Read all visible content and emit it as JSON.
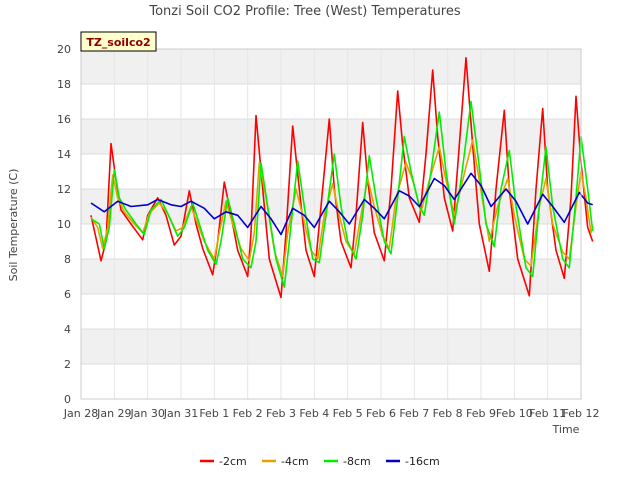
{
  "chart_data": {
    "type": "line",
    "title": "Tonzi Soil CO2 Profile: Tree (West) Temperatures",
    "xlabel": "Time",
    "ylabel": "Soil Temperature (C)",
    "badge": "TZ_soilco2",
    "ylim": [
      0,
      20
    ],
    "yticks": [
      0,
      2,
      4,
      6,
      8,
      10,
      12,
      14,
      16,
      18,
      20
    ],
    "xlim": [
      0,
      15
    ],
    "xticks": [
      {
        "x": 0,
        "label": "Jan 28"
      },
      {
        "x": 1,
        "label": "Jan 29"
      },
      {
        "x": 2,
        "label": "Jan 30"
      },
      {
        "x": 3,
        "label": "Jan 31"
      },
      {
        "x": 4,
        "label": "Feb 1"
      },
      {
        "x": 5,
        "label": "Feb 2"
      },
      {
        "x": 6,
        "label": "Feb 3"
      },
      {
        "x": 7,
        "label": "Feb 4"
      },
      {
        "x": 8,
        "label": "Feb 5"
      },
      {
        "x": 9,
        "label": "Feb 6"
      },
      {
        "x": 10,
        "label": "Feb 7"
      },
      {
        "x": 11,
        "label": "Feb 8"
      },
      {
        "x": 12,
        "label": "Feb 9"
      },
      {
        "x": 13,
        "label": "Feb 10"
      },
      {
        "x": 14,
        "label": "Feb 11"
      },
      {
        "x": 15,
        "label": "Feb 12"
      }
    ],
    "grid": true,
    "legend_position": "bottom",
    "series": [
      {
        "name": "-2cm",
        "color": "#ff0000",
        "points": [
          [
            0.3,
            10.5
          ],
          [
            0.45,
            9.2
          ],
          [
            0.6,
            7.9
          ],
          [
            0.75,
            9.0
          ],
          [
            0.9,
            14.6
          ],
          [
            1.05,
            12.5
          ],
          [
            1.2,
            10.8
          ],
          [
            1.5,
            10.0
          ],
          [
            1.85,
            9.1
          ],
          [
            2.0,
            10.5
          ],
          [
            2.3,
            11.5
          ],
          [
            2.55,
            10.5
          ],
          [
            2.8,
            8.8
          ],
          [
            3.0,
            9.3
          ],
          [
            3.25,
            11.9
          ],
          [
            3.45,
            10.0
          ],
          [
            3.65,
            8.6
          ],
          [
            3.95,
            7.1
          ],
          [
            4.1,
            9.0
          ],
          [
            4.3,
            12.4
          ],
          [
            4.5,
            10.5
          ],
          [
            4.7,
            8.5
          ],
          [
            5.0,
            7.0
          ],
          [
            5.1,
            9.5
          ],
          [
            5.25,
            16.2
          ],
          [
            5.45,
            12.0
          ],
          [
            5.65,
            8.0
          ],
          [
            6.0,
            5.8
          ],
          [
            6.15,
            9.5
          ],
          [
            6.35,
            15.6
          ],
          [
            6.55,
            12.0
          ],
          [
            6.75,
            8.5
          ],
          [
            7.0,
            7.0
          ],
          [
            7.2,
            11.0
          ],
          [
            7.45,
            16.0
          ],
          [
            7.6,
            12.0
          ],
          [
            7.8,
            9.0
          ],
          [
            8.1,
            7.5
          ],
          [
            8.25,
            10.5
          ],
          [
            8.45,
            15.8
          ],
          [
            8.6,
            12.5
          ],
          [
            8.8,
            9.5
          ],
          [
            9.1,
            7.9
          ],
          [
            9.3,
            12.0
          ],
          [
            9.5,
            17.6
          ],
          [
            9.65,
            14.5
          ],
          [
            9.85,
            11.5
          ],
          [
            10.15,
            10.1
          ],
          [
            10.35,
            14.0
          ],
          [
            10.55,
            18.8
          ],
          [
            10.7,
            15.0
          ],
          [
            10.9,
            11.5
          ],
          [
            11.15,
            9.6
          ],
          [
            11.35,
            14.5
          ],
          [
            11.55,
            19.5
          ],
          [
            11.75,
            14.5
          ],
          [
            11.95,
            10.0
          ],
          [
            12.25,
            7.3
          ],
          [
            12.45,
            12.0
          ],
          [
            12.7,
            16.5
          ],
          [
            12.85,
            12.0
          ],
          [
            13.1,
            8.0
          ],
          [
            13.45,
            5.9
          ],
          [
            13.65,
            12.0
          ],
          [
            13.85,
            16.6
          ],
          [
            14.0,
            12.0
          ],
          [
            14.25,
            8.5
          ],
          [
            14.5,
            6.9
          ],
          [
            14.7,
            11.5
          ],
          [
            14.85,
            17.3
          ],
          [
            15.0,
            13.5
          ],
          [
            15.2,
            9.8
          ],
          [
            15.35,
            9.0
          ]
        ]
      },
      {
        "name": "-4cm",
        "color": "#e8a000",
        "points": [
          [
            0.3,
            10.4
          ],
          [
            0.5,
            9.8
          ],
          [
            0.65,
            8.6
          ],
          [
            0.8,
            9.8
          ],
          [
            0.95,
            12.8
          ],
          [
            1.1,
            11.5
          ],
          [
            1.3,
            10.7
          ],
          [
            1.6,
            10.0
          ],
          [
            1.85,
            9.5
          ],
          [
            2.05,
            10.6
          ],
          [
            2.35,
            11.2
          ],
          [
            2.6,
            10.6
          ],
          [
            2.85,
            9.6
          ],
          [
            3.05,
            9.8
          ],
          [
            3.3,
            11.0
          ],
          [
            3.5,
            10.0
          ],
          [
            3.7,
            9.0
          ],
          [
            4.0,
            8.0
          ],
          [
            4.15,
            9.5
          ],
          [
            4.35,
            11.3
          ],
          [
            4.55,
            10.0
          ],
          [
            4.8,
            8.6
          ],
          [
            5.05,
            7.9
          ],
          [
            5.2,
            9.5
          ],
          [
            5.35,
            13.5
          ],
          [
            5.55,
            11.5
          ],
          [
            5.8,
            8.5
          ],
          [
            6.05,
            7.0
          ],
          [
            6.2,
            9.5
          ],
          [
            6.45,
            12.0
          ],
          [
            6.65,
            10.5
          ],
          [
            6.9,
            8.5
          ],
          [
            7.1,
            8.0
          ],
          [
            7.3,
            10.5
          ],
          [
            7.55,
            12.3
          ],
          [
            7.75,
            10.5
          ],
          [
            7.95,
            9.0
          ],
          [
            8.2,
            8.3
          ],
          [
            8.4,
            10.5
          ],
          [
            8.6,
            12.6
          ],
          [
            8.8,
            11.0
          ],
          [
            9.05,
            9.3
          ],
          [
            9.25,
            8.6
          ],
          [
            9.45,
            11.5
          ],
          [
            9.75,
            13.5
          ],
          [
            9.95,
            12.5
          ],
          [
            10.2,
            10.7
          ],
          [
            10.45,
            12.5
          ],
          [
            10.75,
            14.4
          ],
          [
            10.95,
            12.5
          ],
          [
            11.2,
            10.5
          ],
          [
            11.45,
            12.5
          ],
          [
            11.75,
            14.8
          ],
          [
            11.95,
            12.5
          ],
          [
            12.25,
            9.0
          ],
          [
            12.5,
            11.0
          ],
          [
            12.8,
            12.6
          ],
          [
            13.0,
            10.5
          ],
          [
            13.3,
            8.0
          ],
          [
            13.5,
            7.6
          ],
          [
            13.75,
            11.0
          ],
          [
            13.95,
            12.6
          ],
          [
            14.15,
            10.0
          ],
          [
            14.45,
            8.4
          ],
          [
            14.65,
            8.0
          ],
          [
            14.85,
            11.0
          ],
          [
            15.0,
            13.0
          ],
          [
            15.15,
            11.5
          ],
          [
            15.3,
            9.5
          ],
          [
            15.35,
            9.8
          ]
        ]
      },
      {
        "name": "-8cm",
        "color": "#00ee00",
        "points": [
          [
            0.3,
            10.3
          ],
          [
            0.55,
            10.0
          ],
          [
            0.7,
            8.6
          ],
          [
            0.85,
            9.8
          ],
          [
            1.0,
            13.1
          ],
          [
            1.15,
            11.5
          ],
          [
            1.35,
            10.8
          ],
          [
            1.65,
            10.0
          ],
          [
            1.9,
            9.4
          ],
          [
            2.1,
            10.8
          ],
          [
            2.4,
            11.4
          ],
          [
            2.65,
            10.4
          ],
          [
            2.9,
            9.3
          ],
          [
            3.1,
            9.8
          ],
          [
            3.35,
            11.2
          ],
          [
            3.55,
            10.0
          ],
          [
            3.8,
            8.5
          ],
          [
            4.05,
            7.7
          ],
          [
            4.2,
            9.0
          ],
          [
            4.4,
            11.5
          ],
          [
            4.6,
            10.0
          ],
          [
            4.85,
            8.0
          ],
          [
            5.1,
            7.5
          ],
          [
            5.25,
            9.0
          ],
          [
            5.4,
            13.5
          ],
          [
            5.6,
            11.0
          ],
          [
            5.85,
            8.0
          ],
          [
            6.1,
            6.4
          ],
          [
            6.25,
            9.0
          ],
          [
            6.5,
            13.6
          ],
          [
            6.7,
            11.0
          ],
          [
            6.95,
            8.0
          ],
          [
            7.15,
            7.8
          ],
          [
            7.35,
            10.5
          ],
          [
            7.6,
            14.0
          ],
          [
            7.8,
            11.0
          ],
          [
            8.0,
            9.0
          ],
          [
            8.25,
            8.0
          ],
          [
            8.45,
            10.5
          ],
          [
            8.65,
            13.9
          ],
          [
            8.85,
            11.5
          ],
          [
            9.1,
            9.0
          ],
          [
            9.3,
            8.3
          ],
          [
            9.5,
            11.5
          ],
          [
            9.7,
            15.0
          ],
          [
            9.9,
            13.0
          ],
          [
            10.15,
            11.0
          ],
          [
            10.3,
            10.5
          ],
          [
            10.5,
            13.0
          ],
          [
            10.75,
            16.4
          ],
          [
            10.95,
            13.0
          ],
          [
            11.2,
            10.0
          ],
          [
            11.4,
            12.5
          ],
          [
            11.7,
            17.0
          ],
          [
            11.9,
            14.0
          ],
          [
            12.15,
            10.0
          ],
          [
            12.4,
            8.7
          ],
          [
            12.6,
            12.0
          ],
          [
            12.85,
            14.2
          ],
          [
            13.05,
            11.0
          ],
          [
            13.35,
            7.5
          ],
          [
            13.55,
            7.0
          ],
          [
            13.75,
            11.0
          ],
          [
            13.95,
            14.4
          ],
          [
            14.15,
            11.0
          ],
          [
            14.45,
            8.0
          ],
          [
            14.65,
            7.5
          ],
          [
            14.85,
            11.5
          ],
          [
            15.0,
            15.0
          ],
          [
            15.2,
            12.0
          ],
          [
            15.35,
            9.6
          ]
        ]
      },
      {
        "name": "-16cm",
        "color": "#0000cc",
        "points": [
          [
            0.3,
            11.2
          ],
          [
            0.7,
            10.7
          ],
          [
            1.1,
            11.3
          ],
          [
            1.5,
            11.0
          ],
          [
            2.0,
            11.1
          ],
          [
            2.3,
            11.4
          ],
          [
            2.7,
            11.1
          ],
          [
            3.0,
            11.0
          ],
          [
            3.3,
            11.3
          ],
          [
            3.7,
            10.9
          ],
          [
            4.0,
            10.3
          ],
          [
            4.35,
            10.7
          ],
          [
            4.7,
            10.5
          ],
          [
            5.0,
            9.8
          ],
          [
            5.4,
            11.0
          ],
          [
            5.7,
            10.3
          ],
          [
            6.0,
            9.4
          ],
          [
            6.35,
            10.9
          ],
          [
            6.7,
            10.5
          ],
          [
            7.0,
            9.8
          ],
          [
            7.45,
            11.3
          ],
          [
            7.75,
            10.7
          ],
          [
            8.05,
            10.0
          ],
          [
            8.5,
            11.4
          ],
          [
            8.8,
            10.9
          ],
          [
            9.1,
            10.3
          ],
          [
            9.55,
            11.9
          ],
          [
            9.85,
            11.6
          ],
          [
            10.15,
            11.0
          ],
          [
            10.6,
            12.6
          ],
          [
            10.9,
            12.2
          ],
          [
            11.2,
            11.4
          ],
          [
            11.7,
            12.9
          ],
          [
            12.0,
            12.2
          ],
          [
            12.3,
            11.0
          ],
          [
            12.75,
            12.0
          ],
          [
            13.05,
            11.3
          ],
          [
            13.4,
            10.0
          ],
          [
            13.85,
            11.7
          ],
          [
            14.15,
            11.0
          ],
          [
            14.5,
            10.1
          ],
          [
            14.95,
            11.8
          ],
          [
            15.2,
            11.2
          ],
          [
            15.35,
            11.1
          ]
        ]
      }
    ]
  }
}
